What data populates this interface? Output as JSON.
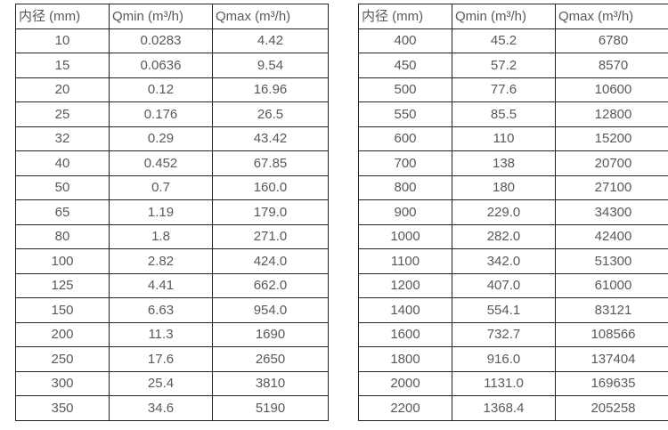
{
  "page": {
    "background_color": "#ffffff",
    "text_color": "#58595b",
    "border_color": "#222222"
  },
  "tables": [
    {
      "name": "small-diameter-flow-table",
      "headers": [
        "内径 (mm)",
        "Qmin (m³/h)",
        "Qmax (m³/h)"
      ],
      "rows": [
        [
          "10",
          "0.0283",
          "4.42"
        ],
        [
          "15",
          "0.0636",
          "9.54"
        ],
        [
          "20",
          "0.12",
          "16.96"
        ],
        [
          "25",
          "0.176",
          "26.5"
        ],
        [
          "32",
          "0.29",
          "43.42"
        ],
        [
          "40",
          "0.452",
          "67.85"
        ],
        [
          "50",
          "0.7",
          "160.0"
        ],
        [
          "65",
          "1.19",
          "179.0"
        ],
        [
          "80",
          "1.8",
          "271.0"
        ],
        [
          "100",
          "2.82",
          "424.0"
        ],
        [
          "125",
          "4.41",
          "662.0"
        ],
        [
          "150",
          "6.63",
          "954.0"
        ],
        [
          "200",
          "11.3",
          "1690"
        ],
        [
          "250",
          "17.6",
          "2650"
        ],
        [
          "300",
          "25.4",
          "3810"
        ],
        [
          "350",
          "34.6",
          "5190"
        ]
      ]
    },
    {
      "name": "large-diameter-flow-table",
      "headers": [
        "内径 (mm)",
        "Qmin (m³/h)",
        "Qmax (m³/h)"
      ],
      "rows": [
        [
          "400",
          "45.2",
          "6780"
        ],
        [
          "450",
          "57.2",
          "8570"
        ],
        [
          "500",
          "77.6",
          "10600"
        ],
        [
          "550",
          "85.5",
          "12800"
        ],
        [
          "600",
          "110",
          "15200"
        ],
        [
          "700",
          "138",
          "20700"
        ],
        [
          "800",
          "180",
          "27100"
        ],
        [
          "900",
          "229.0",
          "34300"
        ],
        [
          "1000",
          "282.0",
          "42400"
        ],
        [
          "1100",
          "342.0",
          "51300"
        ],
        [
          "1200",
          "407.0",
          "61000"
        ],
        [
          "1400",
          "554.1",
          "83121"
        ],
        [
          "1600",
          "732.7",
          "108566"
        ],
        [
          "1800",
          "916.0",
          "137404"
        ],
        [
          "2000",
          "1131.0",
          "169635"
        ],
        [
          "2200",
          "1368.4",
          "205258"
        ]
      ]
    }
  ]
}
